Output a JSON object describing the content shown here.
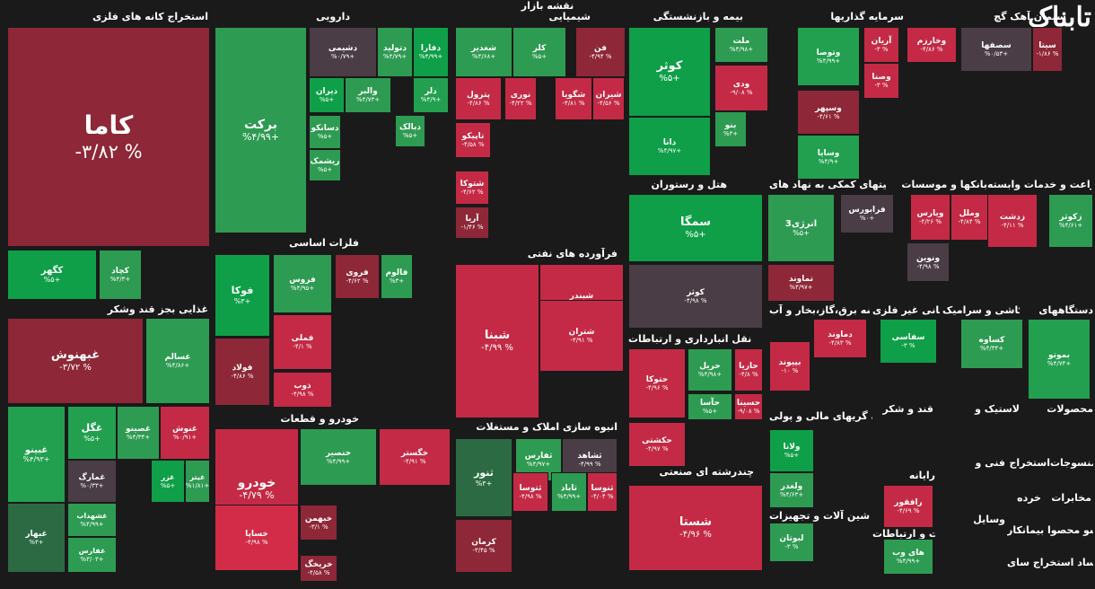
{
  "header": {
    "title": "نقشه بازار",
    "logo_text": "تابناک"
  },
  "sections": [
    {
      "id": "metals",
      "title": "استخراج کانه های فلزی"
    },
    {
      "id": "pharma",
      "title": "دارویی"
    },
    {
      "id": "chem",
      "title": "شیمیایی"
    },
    {
      "id": "insurance",
      "title": "بیمه و بازنشستگی"
    },
    {
      "id": "invest",
      "title": "سرمایه گذاریها"
    },
    {
      "id": "cement",
      "title": "سیمان آهک گچ"
    },
    {
      "id": "food",
      "title": "غذایی بجز قند وشکر"
    },
    {
      "id": "basemetals",
      "title": "فلزات اساسی"
    },
    {
      "id": "oil",
      "title": "فرآورده های نفتی"
    },
    {
      "id": "hotel",
      "title": "هتل و رستوران"
    },
    {
      "id": "support",
      "title": "فعالیتهای کمکی به نهاد های"
    },
    {
      "id": "banks",
      "title": "بانکها و موسسات"
    },
    {
      "id": "agri",
      "title": "زراعت و خدمات وابسته"
    },
    {
      "id": "transport",
      "title": "حمل و نقل انبارداری و ارتباطات"
    },
    {
      "id": "utility",
      "title": "عرضه برق،گاز،بخار و آب"
    },
    {
      "id": "nonmetal",
      "title": "کانی غیر فلزی"
    },
    {
      "id": "ceramic",
      "title": "کاشی و سرامیک"
    },
    {
      "id": "devices",
      "title": "دستگاههای"
    },
    {
      "id": "auto",
      "title": "خودرو و قطعات"
    },
    {
      "id": "realestate",
      "title": "انبوه سازی املاک و مستغلات"
    },
    {
      "id": "multi",
      "title": "چندرشته ای صنعتی"
    },
    {
      "id": "financial",
      "title": "واسطه گریهای مالی و پولی"
    },
    {
      "id": "sugar",
      "title": "قند و شکر"
    },
    {
      "id": "rubber",
      "title": "لاستیک و"
    },
    {
      "id": "products",
      "title": "محصولات"
    },
    {
      "id": "tech",
      "title": "فنی و"
    },
    {
      "id": "extract",
      "title": "استخراج"
    },
    {
      "id": "machinery",
      "title": "ماشین آلات و تجهیزات"
    },
    {
      "id": "computer",
      "title": "رایانه"
    },
    {
      "id": "it",
      "title": "اطلاعات و ارتباطات"
    },
    {
      "id": "textile",
      "title": "منسوجات"
    },
    {
      "id": "telecom",
      "title": "مخابرات"
    },
    {
      "id": "retail",
      "title": "خرده"
    },
    {
      "id": "tools",
      "title": "وسایل"
    },
    {
      "id": "wood",
      "title": "منسو محصوا بیمانکار"
    },
    {
      "id": "other",
      "title": "جام فعا ساد استخراج سای"
    }
  ],
  "tiles": [
    {
      "name": "کاما",
      "pct": "-۳/۸۲ %"
    },
    {
      "name": "برکت",
      "pct": "%۴/۹۹+"
    },
    {
      "name": "کگهر",
      "pct": "%۵+"
    },
    {
      "name": "کچاد",
      "pct": "%۴/۳+"
    },
    {
      "name": "غبهنوش",
      "pct": "-۳/۷۲ %"
    },
    {
      "name": "غسالم",
      "pct": "%۴/۸۶+"
    },
    {
      "name": "غبینو",
      "pct": "%۴/۹۳+"
    },
    {
      "name": "غگل",
      "pct": "%۵+"
    },
    {
      "name": "غصینو",
      "pct": "%۴/۳۴+"
    },
    {
      "name": "غنوش",
      "pct": "%۰/۹۱+"
    },
    {
      "name": "غمارگ",
      "pct": "%۰/۳۳+"
    },
    {
      "name": "غزر",
      "pct": "%۵+"
    },
    {
      "name": "غیتر",
      "pct": "%۱/۸۱+"
    },
    {
      "name": "غبهار",
      "pct": "%۳+"
    },
    {
      "name": "غشهداب",
      "pct": "%۴/۹۹+"
    },
    {
      "name": "غفارس",
      "pct": "%۳/۰۳+"
    },
    {
      "name": "دشیمی",
      "pct": "%۰/۷۹+"
    },
    {
      "name": "دتولید",
      "pct": "%۴/۷۹+"
    },
    {
      "name": "دفارا",
      "pct": "%۴/۹۹+"
    },
    {
      "name": "دیران",
      "pct": "%۵+"
    },
    {
      "name": "والبر",
      "pct": "%۴/۷۳+"
    },
    {
      "name": "دلر",
      "pct": "%۴/۹+"
    },
    {
      "name": "دسانکو",
      "pct": "%۵+"
    },
    {
      "name": "دبالک",
      "pct": "%۵+"
    },
    {
      "name": "ریشمک",
      "pct": "%۵+"
    },
    {
      "name": "شغدیر",
      "pct": "%۴/۶۸+"
    },
    {
      "name": "کلر",
      "pct": "%۵+"
    },
    {
      "name": "فن",
      "pct": "-۴/۹۴ %"
    },
    {
      "name": "پترول",
      "pct": "-۴/۸۶ %"
    },
    {
      "name": "نوری",
      "pct": "-۴/۲۲ %"
    },
    {
      "name": "شگویا",
      "pct": "-۴/۸۱ %"
    },
    {
      "name": "شیران",
      "pct": "-۴/۵۶ %"
    },
    {
      "name": "تاپیکو",
      "pct": "-۴/۵۸ %"
    },
    {
      "name": "شتوکا",
      "pct": "-۴/۶۲ %"
    },
    {
      "name": "آریا",
      "pct": "-۱/۴۶ %"
    },
    {
      "name": "کوثر",
      "pct": "%۵+"
    },
    {
      "name": "ملت",
      "pct": "%۴/۹۸+"
    },
    {
      "name": "ودی",
      "pct": "-۹/۰۸ %"
    },
    {
      "name": "بنو",
      "pct": "%۳+"
    },
    {
      "name": "دانا",
      "pct": "%۴/۹۷+"
    },
    {
      "name": "وتوصا",
      "pct": "%۴/۹۹+"
    },
    {
      "name": "آریان",
      "pct": "-۳ %"
    },
    {
      "name": "وخارزم",
      "pct": "-۴/۸۶ %"
    },
    {
      "name": "وصنا",
      "pct": "-۳ %"
    },
    {
      "name": "وسپهر",
      "pct": "-۴/۶۱ %"
    },
    {
      "name": "وسایا",
      "pct": "%۴/۹+"
    },
    {
      "name": "سصفها",
      "pct": "%۰/۵۳+"
    },
    {
      "name": "سیتا",
      "pct": "-۱/۸۶ %"
    },
    {
      "name": "فوکا",
      "pct": "%۳+"
    },
    {
      "name": "فروس",
      "pct": "%۴/۹۵+"
    },
    {
      "name": "فروی",
      "pct": "-۴/۶۲ %"
    },
    {
      "name": "فالوم",
      "pct": "%۳+"
    },
    {
      "name": "فملی",
      "pct": "-۴/۱ %"
    },
    {
      "name": "فولاد",
      "pct": "-۴/۸۶ %"
    },
    {
      "name": "ذوب",
      "pct": "-۴/۹۸ %"
    },
    {
      "name": "شبنا",
      "pct": "-۴/۹۹ %"
    },
    {
      "name": "شبندر",
      "pct": "-۴/۹۸ %"
    },
    {
      "name": "شتران",
      "pct": "-۴/۹۱ %"
    },
    {
      "name": "سمگا",
      "pct": "%۵+"
    },
    {
      "name": "کوثر",
      "pct": "-۴/۹۸ %"
    },
    {
      "name": "انرژی3",
      "pct": "%۵+"
    },
    {
      "name": "فرابورس",
      "pct": "%۰+"
    },
    {
      "name": "تماوند",
      "pct": "%۴/۹۷+"
    },
    {
      "name": "ونوین",
      "pct": "-۴/۹۸ %"
    },
    {
      "name": "ویارس",
      "pct": "-۴/۲۶ %"
    },
    {
      "name": "وملل",
      "pct": "-۴/۸۴ %"
    },
    {
      "name": "زدشت",
      "pct": "-۴/۱۱ %"
    },
    {
      "name": "زکوثر",
      "pct": "%۴/۶۱+"
    },
    {
      "name": "حتوکا",
      "pct": "-۴/۹۶ %"
    },
    {
      "name": "حریل",
      "pct": "%۴/۹۸+"
    },
    {
      "name": "حاریا",
      "pct": "-۴/۸ %"
    },
    {
      "name": "حآسا",
      "pct": "%۵+"
    },
    {
      "name": "حسینا",
      "pct": "-۹/۰۸ %"
    },
    {
      "name": "حکشتی",
      "pct": "-۴/۹۷ %"
    },
    {
      "name": "دماوند",
      "pct": "-۴/۸۳ %"
    },
    {
      "name": "بپیوند",
      "pct": "-۱۰ %"
    },
    {
      "name": "سفاسی",
      "pct": "-۳ %"
    },
    {
      "name": "کساوه",
      "pct": "%۴/۳۴+"
    },
    {
      "name": "بموتو",
      "pct": "%۴/۷۴+"
    },
    {
      "name": "خودرو",
      "pct": "-۴/۷۹ %"
    },
    {
      "name": "خنصیر",
      "pct": "%۴/۹۹+"
    },
    {
      "name": "خگستر",
      "pct": "-۴/۹۱ %"
    },
    {
      "name": "خبهمن",
      "pct": "-۳/۱ %"
    },
    {
      "name": "خساپا",
      "pct": "-۴/۹۸ %"
    },
    {
      "name": "خریخگ",
      "pct": "-۴/۵۸ %"
    },
    {
      "name": "ثنور",
      "pct": "%۳+"
    },
    {
      "name": "ثفارس",
      "pct": "%۴/۹۷+"
    },
    {
      "name": "ثشاهد",
      "pct": "-۴/۹۹ %"
    },
    {
      "name": "ثتوسا",
      "pct": "-۴/۹۸ %"
    },
    {
      "name": "ثاباد",
      "pct": "%۴/۹۹+"
    },
    {
      "name": "ثنوسا",
      "pct": "-۴/۰۴ %"
    },
    {
      "name": "کرمان",
      "pct": "-۳/۴۵ %"
    },
    {
      "name": "شستا",
      "pct": "-۴/۹۶ %"
    },
    {
      "name": "ولانا",
      "pct": "%۵+"
    },
    {
      "name": "ولغدر",
      "pct": "%۴/۶۳+"
    },
    {
      "name": "لبوتان",
      "pct": "-۳ %"
    },
    {
      "name": "رافقور",
      "pct": "-۴/۶۹ %"
    },
    {
      "name": "های وب",
      "pct": "%۴/۹۹+"
    }
  ]
}
